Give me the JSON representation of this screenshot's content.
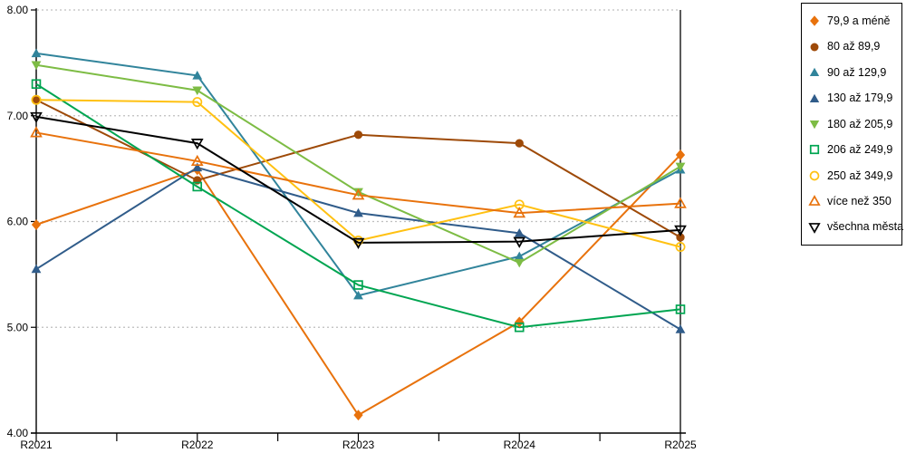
{
  "chart_data": {
    "type": "line",
    "title": "",
    "xlabel": "",
    "ylabel": "",
    "categories": [
      "R2021",
      "R2022",
      "R2023",
      "R2024",
      "R2025"
    ],
    "ylim": [
      4,
      8
    ],
    "ytick_labels": [
      "8.00",
      "7.00",
      "6.00",
      "5.00",
      "4.00"
    ],
    "ytick_values": [
      8,
      7,
      6,
      5,
      4
    ],
    "grid": "horizontal-dotted",
    "gridline_color": "#bfbfbf",
    "legend_position": "right",
    "series": [
      {
        "name": "79,9 a méně",
        "color": "#e8720c",
        "marker": "diamond",
        "marker_style": "filled",
        "values": [
          5.97,
          6.49,
          4.17,
          5.05,
          6.63
        ]
      },
      {
        "name": "80 až 89,9",
        "color": "#9e4a08",
        "marker": "circle",
        "marker_style": "filled",
        "values": [
          7.15,
          6.39,
          6.82,
          6.74,
          5.85
        ]
      },
      {
        "name": "90 až 129,9",
        "color": "#31849b",
        "marker": "triangle-up",
        "marker_style": "filled",
        "values": [
          7.59,
          7.38,
          5.3,
          5.67,
          6.49
        ]
      },
      {
        "name": "130 až 179,9",
        "color": "#305c8a",
        "marker": "triangle-up",
        "marker_style": "filled",
        "values": [
          5.55,
          6.51,
          6.08,
          5.89,
          4.98
        ]
      },
      {
        "name": "180 až 205,9",
        "color": "#7dbc44",
        "marker": "triangle-down",
        "marker_style": "filled",
        "values": [
          7.48,
          7.24,
          6.28,
          5.61,
          6.52
        ]
      },
      {
        "name": "206 až 249,9",
        "color": "#00a551",
        "marker": "square",
        "marker_style": "open",
        "values": [
          7.3,
          6.33,
          5.4,
          5.0,
          5.17
        ]
      },
      {
        "name": "250 až 349,9",
        "color": "#ffc112",
        "marker": "circle",
        "marker_style": "open",
        "values": [
          7.15,
          7.13,
          5.82,
          6.16,
          5.76
        ]
      },
      {
        "name": "více než 350",
        "color": "#e8720c",
        "marker": "triangle-up",
        "marker_style": "open",
        "values": [
          6.84,
          6.57,
          6.25,
          6.08,
          6.17
        ]
      },
      {
        "name": "všechna města",
        "color": "#000000",
        "marker": "triangle-down",
        "marker_style": "open",
        "values": [
          6.99,
          6.74,
          5.8,
          5.81,
          5.92
        ]
      }
    ]
  }
}
